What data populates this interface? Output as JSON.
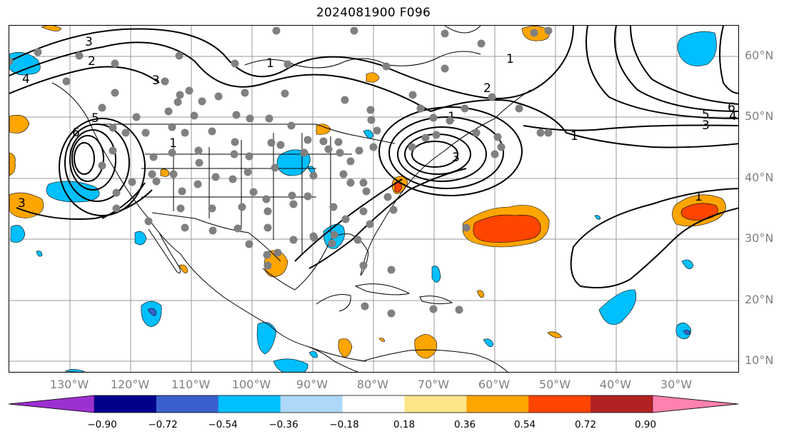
{
  "title": "2024081900 F096",
  "lat_ticks": [
    "60°N",
    "50°N",
    "40°N",
    "30°N",
    "20°N",
    "10°N"
  ],
  "lon_ticks": [
    "130°W",
    "120°W",
    "110°W",
    "100°W",
    "90°W",
    "80°W",
    "70°W",
    "60°W",
    "50°W",
    "40°W",
    "30°W"
  ],
  "contour_labels": [
    "3",
    "2",
    "1",
    "4",
    "3",
    "5",
    "6",
    "1",
    "2",
    "1",
    "3",
    "1",
    "6",
    "5",
    "4",
    "3",
    "1",
    "3",
    "1"
  ],
  "colorbar": {
    "tick_labels": [
      "−0.90",
      "−0.72",
      "−0.54",
      "−0.36",
      "−0.18",
      "0.18",
      "0.36",
      "0.54",
      "0.72",
      "0.90"
    ],
    "colors": [
      "#9b30d0",
      "#00008b",
      "#3a5fcd",
      "#00bfff",
      "#add8f7",
      "#ffffff",
      "#fde68a",
      "#ffa500",
      "#ff4500",
      "#b22222",
      "#ff82b0"
    ]
  },
  "shading_colors": {
    "light_orange": "#ffa500",
    "red_orange": "#ff4500",
    "sky_blue": "#00bfff",
    "blue": "#3a5fcd"
  },
  "station_marker_color": "#808080"
}
